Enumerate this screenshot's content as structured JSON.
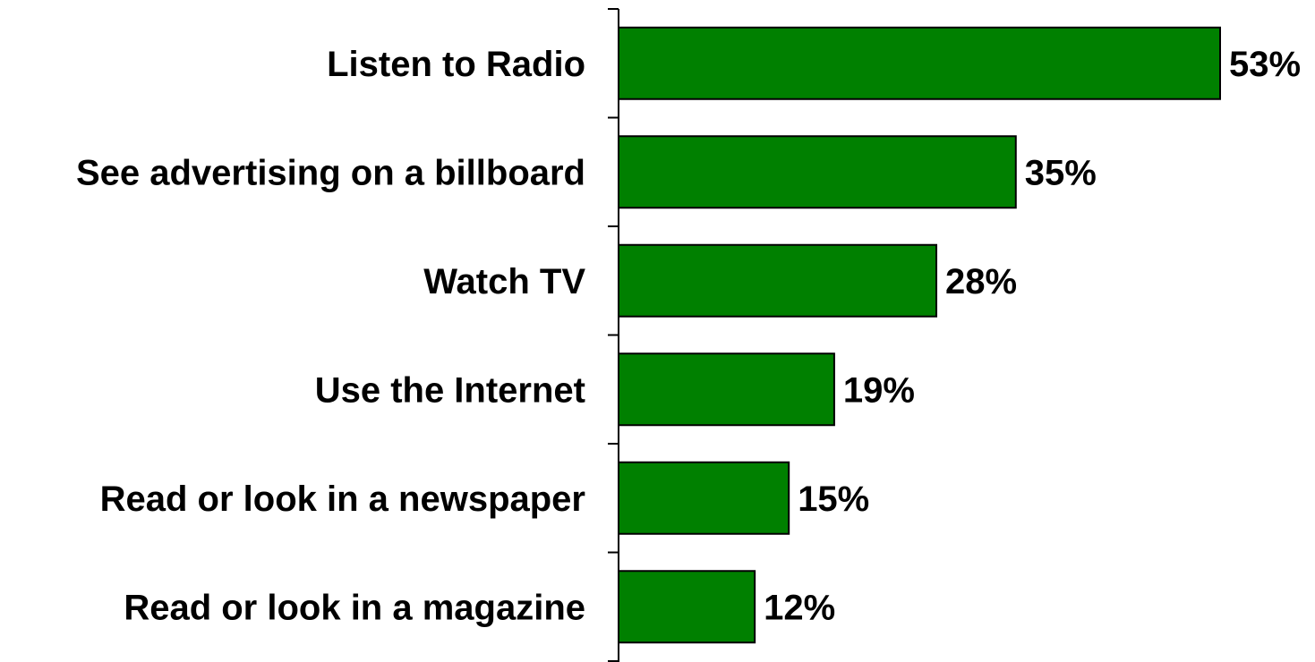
{
  "chart_data": {
    "type": "bar",
    "orientation": "horizontal",
    "title": "",
    "xlabel": "",
    "ylabel": "",
    "xlim": [
      0,
      53
    ],
    "grid": false,
    "legend": "none",
    "categories": [
      "Listen to Radio",
      "See advertising on a billboard",
      "Watch TV",
      "Use the Internet",
      "Read or look in a newspaper",
      "Read or look in a magazine"
    ],
    "values": [
      53,
      35,
      28,
      19,
      15,
      12
    ],
    "value_labels": [
      "53%",
      "35%",
      "28%",
      "19%",
      "15%",
      "12%"
    ],
    "colors": {
      "bar": "#008000",
      "bar_outline": "#000000",
      "axis": "#000000"
    }
  }
}
